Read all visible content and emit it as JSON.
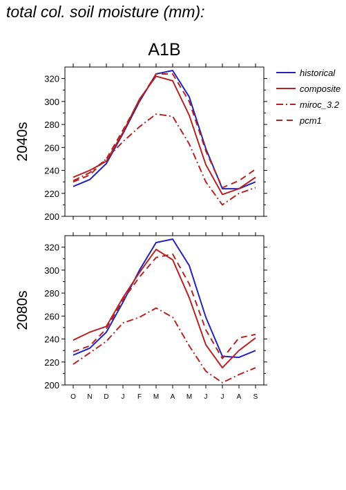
{
  "figure_title": "total col. soil moisture (mm):",
  "chart_data": {
    "type": "line",
    "scenario": "A1B",
    "categories": [
      "O",
      "N",
      "D",
      "J",
      "F",
      "M",
      "A",
      "M",
      "J",
      "J",
      "A",
      "S"
    ],
    "ylim": [
      200,
      330
    ],
    "yticks": [
      200,
      220,
      240,
      260,
      280,
      300,
      320
    ],
    "legend_position": "top-right",
    "legend": [
      {
        "name": "historical",
        "color": "#2222bb",
        "dash": "solid"
      },
      {
        "name": "composite",
        "color": "#b52222",
        "dash": "solid"
      },
      {
        "name": "miroc_3.2",
        "color": "#b52222",
        "dash": "dashdot"
      },
      {
        "name": "pcm1",
        "color": "#b52222",
        "dash": "dashed"
      }
    ],
    "panels": [
      {
        "label": "2040s",
        "series": [
          {
            "name": "historical",
            "values": [
              226,
              232,
              246,
              272,
              300,
              324,
              327,
              304,
              259,
              224,
              224,
              230
            ]
          },
          {
            "name": "composite",
            "values": [
              234,
              240,
              248,
              273,
              302,
              322,
              318,
              288,
              245,
              219,
              224,
              234
            ]
          },
          {
            "name": "miroc_3.2",
            "values": [
              231,
              238,
              250,
              265,
              278,
              289,
              287,
              263,
              230,
              210,
              220,
              225
            ]
          },
          {
            "name": "pcm1",
            "values": [
              230,
              236,
              250,
              275,
              301,
              324,
              324,
              300,
              257,
              225,
              231,
              241
            ]
          }
        ]
      },
      {
        "label": "2080s",
        "series": [
          {
            "name": "historical",
            "values": [
              226,
              232,
              246,
              272,
              300,
              324,
              327,
              304,
              259,
              225,
              224,
              230
            ]
          },
          {
            "name": "composite",
            "values": [
              239,
              246,
              251,
              276,
              298,
              318,
              309,
              276,
              235,
              215,
              230,
              241
            ]
          },
          {
            "name": "miroc_3.2",
            "values": [
              218,
              228,
              238,
              254,
              259,
              267,
              259,
              234,
              212,
              202,
              209,
              215
            ]
          },
          {
            "name": "pcm1",
            "values": [
              229,
              234,
              249,
              274,
              294,
              311,
              314,
              288,
              248,
              223,
              241,
              244
            ]
          }
        ]
      }
    ]
  }
}
